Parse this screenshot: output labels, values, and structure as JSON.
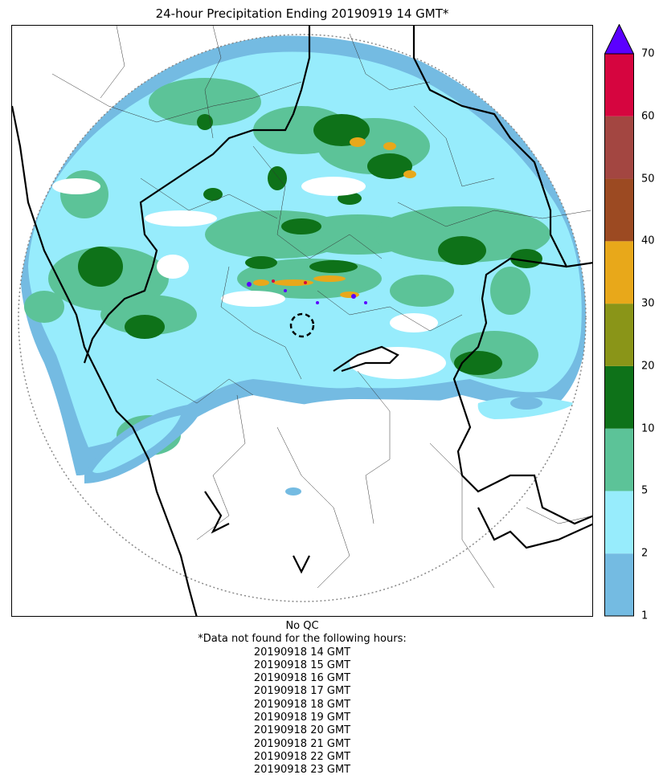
{
  "title": "24-hour Precipitation Ending 20190919 14 GMT*",
  "colorbar": {
    "labels": [
      "1",
      "2",
      "5",
      "10",
      "20",
      "30",
      "40",
      "50",
      "60",
      "70"
    ],
    "bins": [
      {
        "from": 1,
        "to": 2,
        "color": "#74bbe2"
      },
      {
        "from": 2,
        "to": 5,
        "color": "#97ecfc"
      },
      {
        "from": 5,
        "to": 10,
        "color": "#5cc398"
      },
      {
        "from": 10,
        "to": 20,
        "color": "#0e7219"
      },
      {
        "from": 20,
        "to": 30,
        "color": "#8a9518"
      },
      {
        "from": 30,
        "to": 40,
        "color": "#e8a81a"
      },
      {
        "from": 40,
        "to": 50,
        "color": "#9c4a22"
      },
      {
        "from": 50,
        "to": 60,
        "color": "#a34641"
      },
      {
        "from": 60,
        "to": 70,
        "color": "#d6053f"
      }
    ],
    "extend_max_color": "#5b00ff"
  },
  "notes": {
    "qc": "No QC",
    "missing_header": "*Data not found for the following hours:",
    "missing_hours": [
      "20190918 14 GMT",
      "20190918 15 GMT",
      "20190918 16 GMT",
      "20190918 17 GMT",
      "20190918 18 GMT",
      "20190918 19 GMT",
      "20190918 20 GMT",
      "20190918 21 GMT",
      "20190918 22 GMT",
      "20190918 23 GMT"
    ]
  }
}
